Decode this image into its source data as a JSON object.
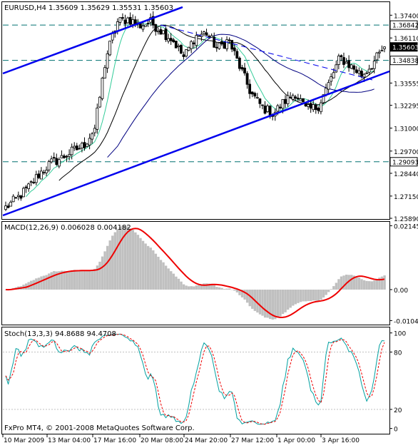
{
  "main": {
    "symbol": "EURUSD,H4",
    "ohlc": "1.35609 1.35629 1.35531 1.35603",
    "ylim": [
      1.2589,
      1.381
    ],
    "ticks": [
      "1.37400",
      "1.36110",
      "1.34838",
      "1.33555",
      "1.32295",
      "1.31000",
      "1.29700",
      "1.28440",
      "1.27150",
      "1.25890"
    ],
    "tick_values": [
      1.374,
      1.3611,
      1.34838,
      1.33555,
      1.32295,
      1.31,
      1.297,
      1.2844,
      1.2715,
      1.2589
    ],
    "levels": [
      {
        "label": "1.36842",
        "value": 1.36842
      },
      {
        "label": "1.34838",
        "value": 1.34838
      },
      {
        "label": "1.29093",
        "value": 1.29093
      }
    ],
    "current": {
      "label": "1.35603",
      "value": 1.35603
    }
  },
  "macd": {
    "label": "MACD(12,26,9) 0.006028 0.004182",
    "ylim": [
      -0.0115,
      0.0225
    ],
    "ticks": [
      "0.02145",
      "0.00",
      "-0.01040"
    ],
    "tick_values": [
      0.02145,
      0.0,
      -0.0104
    ]
  },
  "stoch": {
    "label": "Stoch(13,3,3) 94.8688 94.4708",
    "ylim": [
      -4,
      105
    ],
    "ticks": [
      "100",
      "80",
      "20",
      "0"
    ],
    "tick_values": [
      100,
      80,
      20,
      0
    ]
  },
  "xticks": [
    "10 Mar 2009",
    "13 Mar 04:00",
    "17 Mar 16:00",
    "20 Mar 08:00",
    "24 Mar 20:00",
    "27 Mar 12:00",
    "1 Apr 00:00",
    "3 Apr 16:00"
  ],
  "copyright": "FxPro MT4, © 2001-2008 MetaQuotes Software Corp.",
  "colors": {
    "trendline": "#0000ee",
    "level_line": "#007070",
    "macd_hist": "#c0c0c0",
    "macd_signal": "#ee0000",
    "stoch_main": "#00a0a0",
    "stoch_signal": "#ee0000",
    "ma_fast": "#33cc99",
    "ma_slow": "#000000",
    "ma_long": "#000080"
  },
  "chart_data": {
    "type": "candlestick",
    "close_anchors": [
      1.265,
      1.27,
      1.276,
      1.284,
      1.29,
      1.293,
      1.297,
      1.3,
      1.31,
      1.35,
      1.37,
      1.372,
      1.368,
      1.37,
      1.365,
      1.36,
      1.35,
      1.362,
      1.364,
      1.355,
      1.36,
      1.345,
      1.33,
      1.322,
      1.318,
      1.325,
      1.33,
      1.32,
      1.322,
      1.335,
      1.35,
      1.345,
      1.34,
      1.347,
      1.356
    ]
  }
}
